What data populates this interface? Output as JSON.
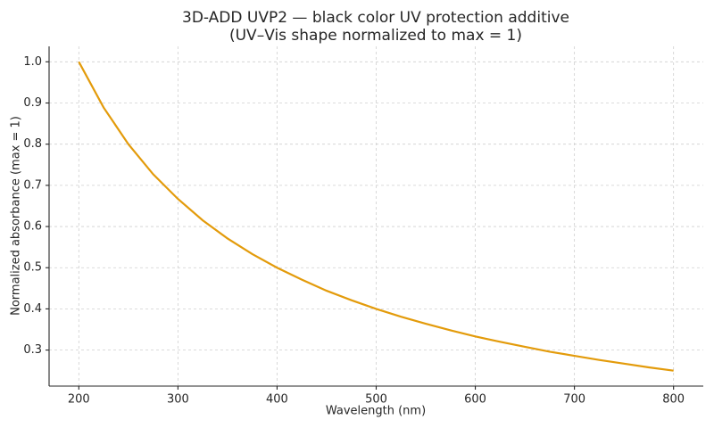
{
  "chart_data": {
    "type": "line",
    "title": "3D-ADD UVP2 — black color UV protection additive",
    "subtitle": "(UV–Vis shape normalized to max = 1)",
    "x_label": "Wavelength (nm)",
    "y_label": "Normalized absorbance (max = 1)",
    "x": [
      200,
      225,
      250,
      275,
      300,
      325,
      350,
      375,
      400,
      425,
      450,
      475,
      500,
      525,
      550,
      575,
      600,
      625,
      650,
      675,
      700,
      725,
      750,
      775,
      800
    ],
    "series": [
      {
        "color": "#e39b0b",
        "values": [
          1,
          0.889,
          0.8,
          0.727,
          0.667,
          0.615,
          0.571,
          0.533,
          0.5,
          0.471,
          0.444,
          0.421,
          0.4,
          0.381,
          0.364,
          0.348,
          0.333,
          0.32,
          0.308,
          0.296,
          0.286,
          0.276,
          0.267,
          0.258,
          0.25
        ]
      }
    ],
    "xlim": [
      170,
      830
    ],
    "ylim": [
      0.2125,
      1.0375
    ],
    "xticks": [
      200,
      300,
      400,
      500,
      600,
      700,
      800
    ],
    "yticks": [
      0.3,
      0.4,
      0.5,
      0.6,
      0.7,
      0.8,
      0.9,
      {
        "value": 1,
        "label": "1.0"
      }
    ],
    "grid": true
  }
}
